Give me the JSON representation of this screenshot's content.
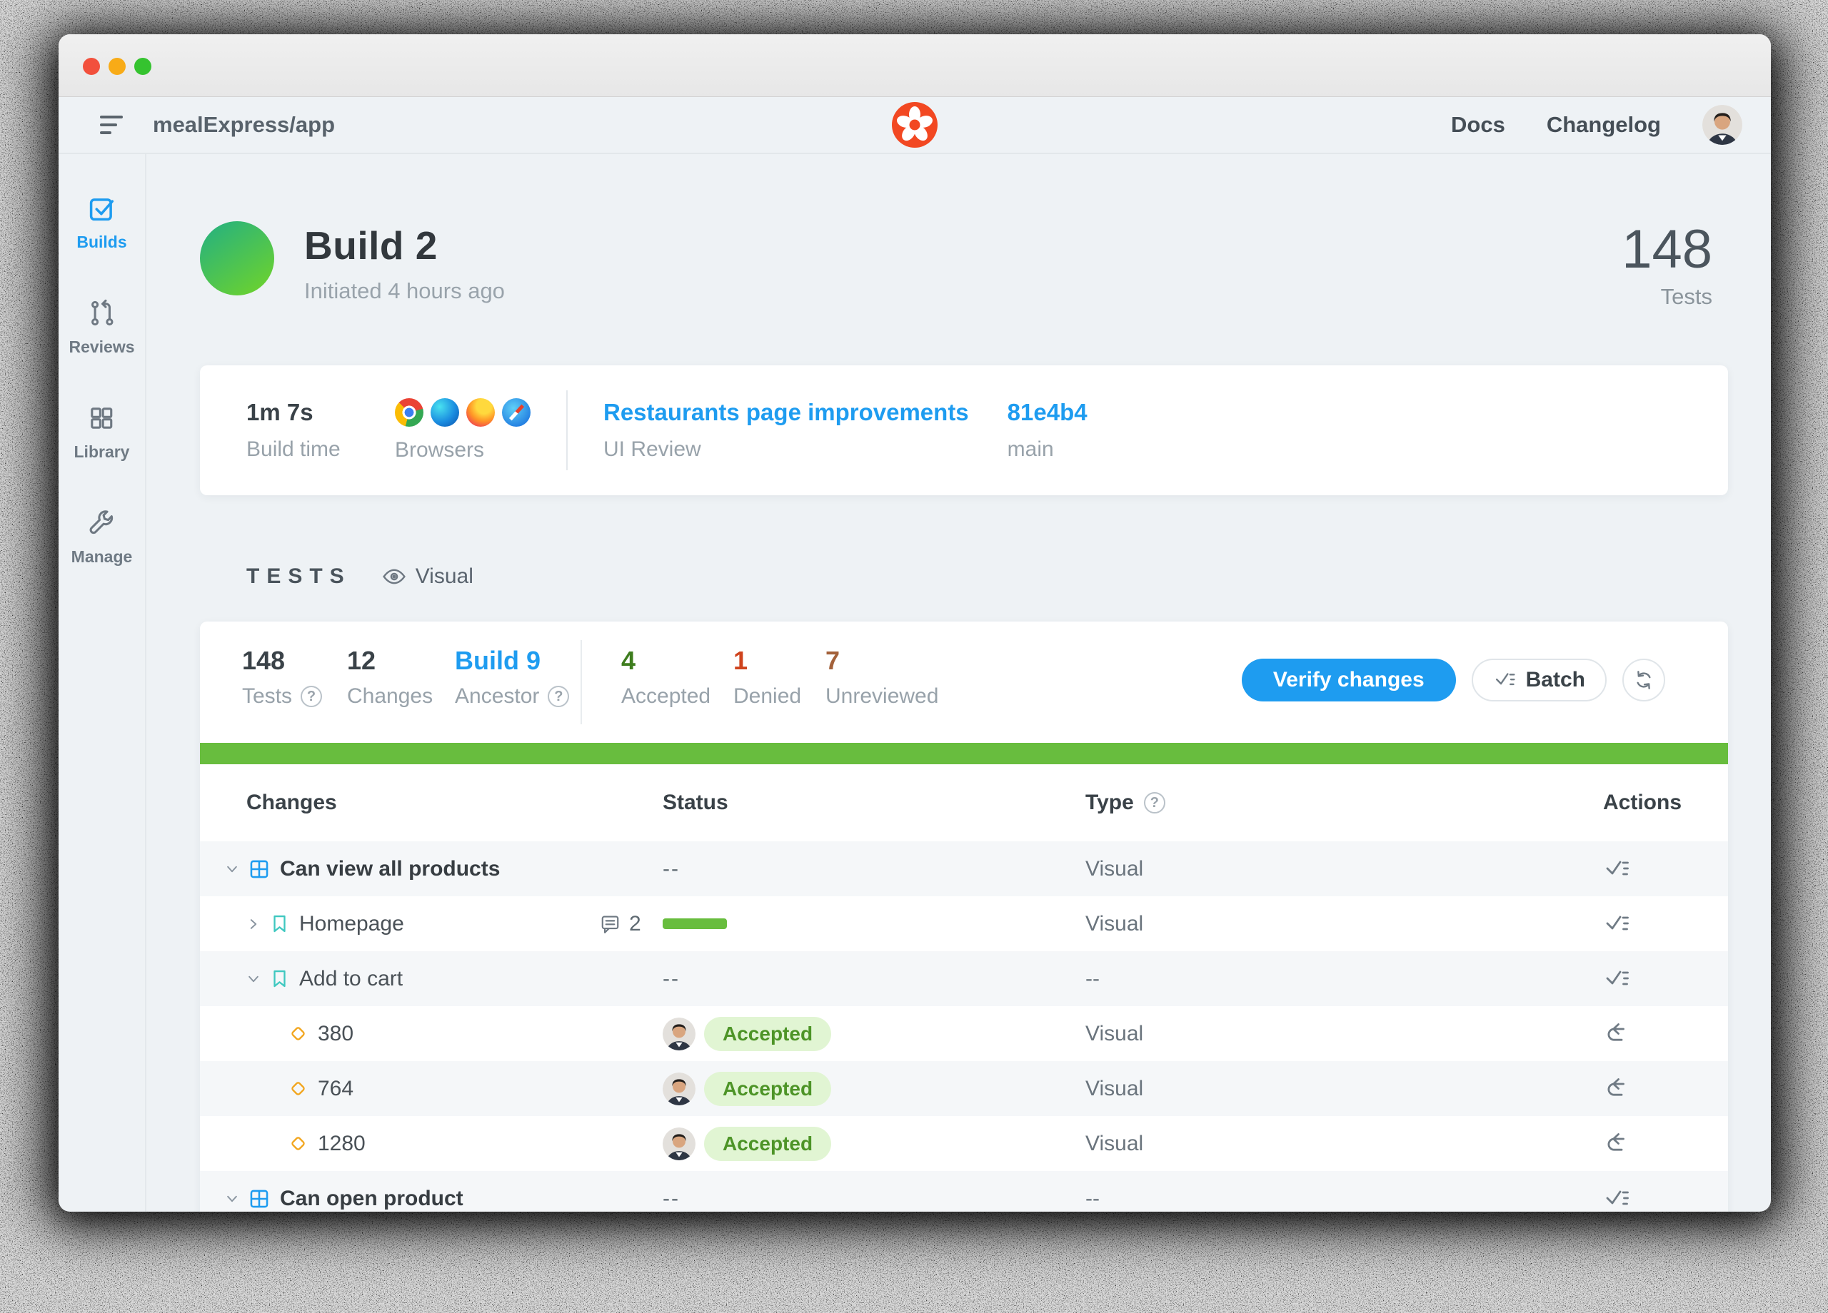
{
  "colors": {
    "accent": "#1e9cf0",
    "green": "#68bd3e",
    "greendark": "#3e7d1e",
    "red": "#cf431d",
    "brown": "#a3613a",
    "teal": "#3fc8c0",
    "yellow": "#f2a51c",
    "logoorange": "#f24822",
    "acceptbg": "#e1f5d3",
    "accepttext": "#4d9427",
    "rowalt": "#f5f7f9",
    "build1": "#2ab37a",
    "build2": "#6ed32c"
  },
  "window": {
    "traffic_lights": [
      "close",
      "minimize",
      "zoom"
    ]
  },
  "header": {
    "project": "mealExpress/app",
    "nav": [
      {
        "label": "Docs"
      },
      {
        "label": "Changelog"
      }
    ]
  },
  "sidebar": {
    "items": [
      {
        "label": "Builds",
        "icon": "checkbox-icon",
        "active": true
      },
      {
        "label": "Reviews",
        "icon": "pull-request-icon",
        "active": false
      },
      {
        "label": "Library",
        "icon": "grid-squares-icon",
        "active": false
      },
      {
        "label": "Manage",
        "icon": "wrench-icon",
        "active": false
      }
    ]
  },
  "build": {
    "title": "Build 2",
    "subtitle": "Initiated 4 hours ago",
    "tests_count": "148",
    "tests_label": "Tests"
  },
  "summary": {
    "build_time_value": "1m 7s",
    "build_time_label": "Build time",
    "browsers_label": "Browsers",
    "browsers": [
      "Chrome",
      "Edge",
      "Firefox",
      "Safari"
    ],
    "review_title": "Restaurants page improvements",
    "review_label": "UI Review",
    "commit": "81e4b4",
    "branch": "main"
  },
  "tests_section": {
    "heading": "TESTS",
    "filter_label": "Visual"
  },
  "stats": {
    "tests": {
      "value": "148",
      "label": "Tests",
      "help": "?"
    },
    "changes": {
      "value": "12",
      "label": "Changes"
    },
    "ancestor": {
      "value": "Build 9",
      "label": "Ancestor",
      "help": "?"
    },
    "accepted": {
      "value": "4",
      "label": "Accepted"
    },
    "denied": {
      "value": "1",
      "label": "Denied"
    },
    "unreviewed": {
      "value": "7",
      "label": "Unreviewed"
    },
    "verify_button": "Verify changes",
    "batch_button": "Batch"
  },
  "table": {
    "columns": {
      "changes": "Changes",
      "status": "Status",
      "type": "Type",
      "actions": "Actions"
    },
    "type_help": "?",
    "rows": [
      {
        "kind": "group",
        "expanded": true,
        "label": "Can view all products",
        "status": "--",
        "type": "Visual",
        "action": "checklist"
      },
      {
        "kind": "page",
        "expanded": false,
        "label": "Homepage",
        "comments": "2",
        "progress": true,
        "type": "Visual",
        "action": "checklist"
      },
      {
        "kind": "page",
        "expanded": true,
        "label": "Add to cart",
        "status": "--",
        "type": "--",
        "action": "checklist"
      },
      {
        "kind": "snapshot",
        "label": "380",
        "status": "Accepted",
        "type": "Visual",
        "action": "undo"
      },
      {
        "kind": "snapshot",
        "label": "764",
        "status": "Accepted",
        "type": "Visual",
        "action": "undo"
      },
      {
        "kind": "snapshot",
        "label": "1280",
        "status": "Accepted",
        "type": "Visual",
        "action": "undo"
      },
      {
        "kind": "group",
        "expanded": true,
        "label": "Can open product",
        "status": "--",
        "type": "--",
        "action": "checklist"
      }
    ]
  }
}
